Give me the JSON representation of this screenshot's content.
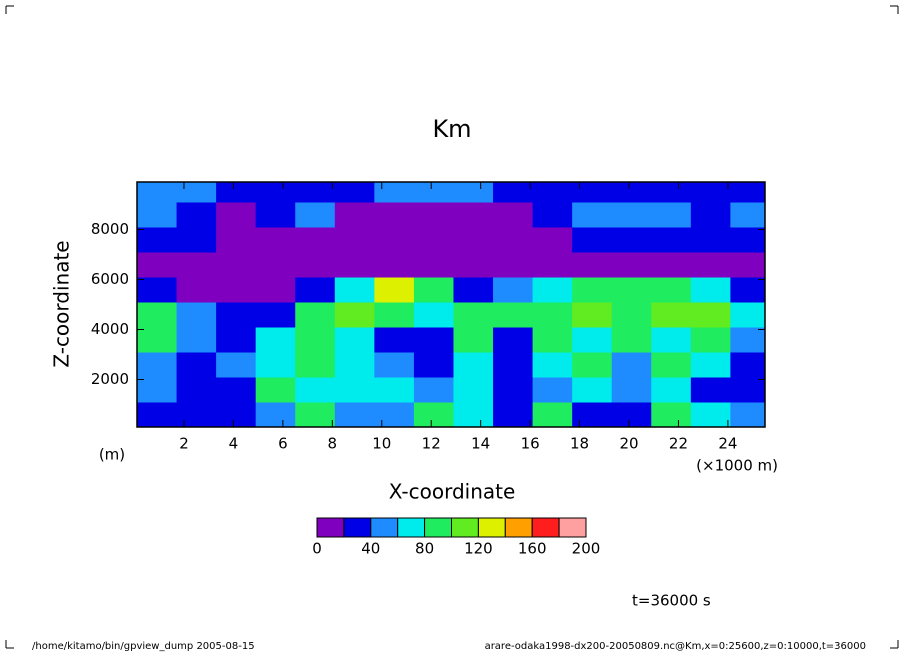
{
  "chart_data": {
    "type": "contour",
    "title": "Km",
    "xlabel": "X-coordinate",
    "ylabel": "Z-coordinate",
    "xunit": "(×1000 m)",
    "yunit": "(m)",
    "xlim": [
      0.1,
      25.5
    ],
    "ylim": [
      100,
      9900
    ],
    "xticks": [
      2,
      4,
      6,
      8,
      10,
      12,
      14,
      16,
      18,
      20,
      22,
      24
    ],
    "yticks": [
      2000,
      4000,
      6000,
      8000
    ],
    "x": [
      0.9,
      2.5,
      4.1,
      5.7,
      7.3,
      8.9,
      10.5,
      12.1,
      13.7,
      15.3,
      16.9,
      18.5,
      20.1,
      21.7,
      23.3,
      24.9
    ],
    "y": [
      600,
      1600,
      2600,
      3600,
      4600,
      5600,
      6600,
      7600,
      8600,
      9600
    ],
    "z": [
      [
        30,
        30,
        30,
        50,
        90,
        50,
        50,
        90,
        70,
        30,
        90,
        30,
        30,
        90,
        70,
        50
      ],
      [
        50,
        30,
        30,
        90,
        70,
        70,
        70,
        50,
        70,
        30,
        50,
        70,
        50,
        70,
        30,
        30
      ],
      [
        50,
        30,
        50,
        70,
        90,
        70,
        50,
        30,
        70,
        30,
        70,
        90,
        50,
        90,
        70,
        30
      ],
      [
        90,
        50,
        30,
        70,
        90,
        70,
        30,
        30,
        90,
        30,
        90,
        70,
        90,
        70,
        90,
        50
      ],
      [
        90,
        50,
        30,
        30,
        90,
        110,
        90,
        70,
        90,
        90,
        90,
        110,
        90,
        110,
        110,
        70
      ],
      [
        30,
        10,
        10,
        10,
        30,
        70,
        130,
        90,
        30,
        50,
        70,
        90,
        90,
        90,
        70,
        30
      ],
      [
        10,
        10,
        10,
        10,
        10,
        10,
        10,
        10,
        10,
        10,
        10,
        10,
        10,
        10,
        10,
        10
      ],
      [
        30,
        30,
        10,
        10,
        10,
        10,
        10,
        10,
        10,
        10,
        10,
        30,
        30,
        30,
        30,
        30
      ],
      [
        45,
        30,
        10,
        30,
        45,
        10,
        10,
        10,
        10,
        10,
        30,
        45,
        45,
        45,
        30,
        45
      ],
      [
        45,
        45,
        30,
        30,
        30,
        35,
        45,
        45,
        45,
        30,
        30,
        30,
        30,
        30,
        30,
        30
      ]
    ],
    "colorbar": {
      "levels": [
        0,
        20,
        40,
        60,
        80,
        100,
        120,
        140,
        160,
        180,
        200
      ],
      "colors": [
        "#8000c0",
        "#0000e6",
        "#1e8cff",
        "#00ecec",
        "#20ec60",
        "#60ec20",
        "#dcf000",
        "#ffa000",
        "#ff1e1e",
        "#ffa0a0"
      ],
      "ticks": [
        0,
        40,
        80,
        120,
        160,
        200
      ]
    },
    "time_label": "t=36000 s"
  },
  "footer": {
    "left": "/home/kitamo/bin/gpview_dump  2005-08-15",
    "right": "arare-odaka1998-dx200-20050809.nc@Km,x=0:25600,z=0:10000,t=36000"
  }
}
